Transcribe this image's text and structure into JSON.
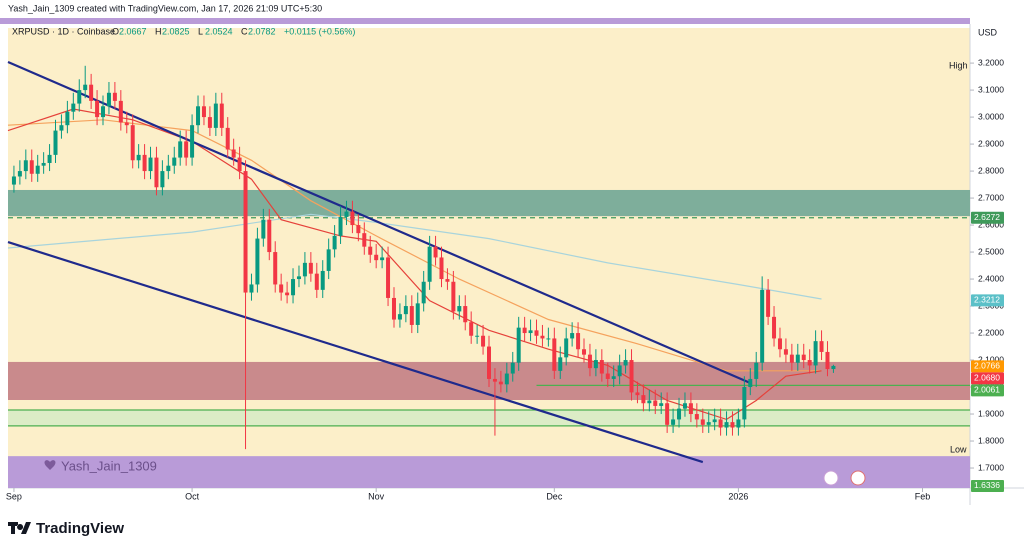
{
  "header_note": "Yash_Jain_1309 created with TradingView.com, Jan 17, 2026 21:09 UTC+5:30",
  "brand": "TradingView",
  "chart_data": {
    "type": "candlestick",
    "symbol": "XRPUSD · 1D · Coinbase",
    "legend_ohlc": [
      {
        "key": "O",
        "value": 2.0667
      },
      {
        "key": "H",
        "value": 2.0825
      },
      {
        "key": "L",
        "value": 2.0524
      },
      {
        "key": "C",
        "value": 2.0782
      }
    ],
    "change": "+0.0115 (+0.56%)",
    "currency": "USD",
    "high_label": "High",
    "low_label": "Low",
    "watermark": "Yash_Jain_1309",
    "up_color": "#089981",
    "down_color": "#f23645",
    "xlim": [
      -1,
      161
    ],
    "xticks": [
      {
        "value": 0,
        "label": "Sep"
      },
      {
        "value": 30,
        "label": "Oct"
      },
      {
        "value": 61,
        "label": "Nov"
      },
      {
        "value": 91,
        "label": "Dec"
      },
      {
        "value": 122,
        "label": "2026"
      },
      {
        "value": 153,
        "label": "Feb"
      }
    ],
    "ylim": [
      1.626,
      3.33
    ],
    "yticks": [
      {
        "value": 1.7,
        "label": "1.7000"
      },
      {
        "value": 1.8,
        "label": "1.8000"
      },
      {
        "value": 1.9,
        "label": "1.9000"
      },
      {
        "value": 2.0,
        "label": "2.0000"
      },
      {
        "value": 2.1,
        "label": "2.1000"
      },
      {
        "value": 2.2,
        "label": "2.2000"
      },
      {
        "value": 2.3,
        "label": "2.3000"
      },
      {
        "value": 2.4,
        "label": "2.4000"
      },
      {
        "value": 2.5,
        "label": "2.5000"
      },
      {
        "value": 2.6,
        "label": "2.6000"
      },
      {
        "value": 2.7,
        "label": "2.7000"
      },
      {
        "value": 2.8,
        "label": "2.8000"
      },
      {
        "value": 2.9,
        "label": "2.9000"
      },
      {
        "value": 3.0,
        "label": "3.0000"
      },
      {
        "value": 3.1,
        "label": "3.1000"
      },
      {
        "value": 3.2,
        "label": "3.2000"
      }
    ],
    "zones": [
      {
        "from": 2.633,
        "to": 2.73,
        "color": "#7eae9b"
      },
      {
        "from": 1.952,
        "to": 2.093,
        "color": "#c98a8c"
      },
      {
        "from": 1.856,
        "to": 1.915,
        "color": "#dcecc6"
      },
      {
        "from": 1.626,
        "to": 1.744,
        "color": "#b99bd8"
      }
    ],
    "levels": [
      {
        "value": 2.6272,
        "color": "#3f9a5a",
        "dashed": true,
        "from": -1
      },
      {
        "value": 2.0061,
        "color": "#4caf50",
        "dashed": false,
        "from": 88
      },
      {
        "value": 1.915,
        "color": "#4caf50",
        "dashed": false,
        "from": -1
      },
      {
        "value": 1.856,
        "color": "#4caf50",
        "dashed": false,
        "from": -1
      }
    ],
    "price_labels": [
      {
        "value": 2.6272,
        "color": "#3f9a5a"
      },
      {
        "value": 2.3212,
        "color": "#5bc0c8"
      },
      {
        "value": 2.0766,
        "color": "#ff9800"
      },
      {
        "value": 2.068,
        "label": "2.0680",
        "color": "#f23645"
      },
      {
        "value": 2.0061,
        "color": "#4caf50"
      },
      {
        "value": 1.6336,
        "color": "#4caf50"
      }
    ],
    "lines": [
      {
        "color": "#a8d4dc",
        "x": [
          -1,
          30,
          50,
          61,
          80,
          100,
          122,
          136
        ],
        "values": [
          2.515,
          2.574,
          2.64,
          2.61,
          2.55,
          2.46,
          2.38,
          2.326
        ]
      },
      {
        "color": "#f5a25d",
        "x": [
          -1,
          15,
          30,
          40,
          50,
          61,
          75,
          90,
          105,
          120,
          136
        ],
        "values": [
          2.97,
          2.99,
          2.95,
          2.84,
          2.69,
          2.56,
          2.4,
          2.25,
          2.16,
          2.06,
          2.06
        ]
      },
      {
        "color": "#e5413a",
        "x": [
          -1,
          10,
          20,
          30,
          40,
          45,
          55,
          61,
          70,
          80,
          90,
          100,
          110,
          120,
          125,
          130,
          136
        ],
        "values": [
          2.95,
          3.03,
          2.99,
          2.91,
          2.77,
          2.62,
          2.56,
          2.54,
          2.32,
          2.21,
          2.14,
          2.08,
          1.95,
          1.88,
          1.95,
          2.04,
          2.06
        ]
      },
      {
        "color": "#1f2a8c",
        "x": [
          -1,
          124
        ],
        "values": [
          3.204,
          2.015
        ]
      },
      {
        "color": "#1f2a8c",
        "x": [
          -1,
          116
        ],
        "values": [
          2.537,
          1.722
        ]
      }
    ],
    "candles": [
      [
        2.75,
        2.82,
        2.72,
        2.78
      ],
      [
        2.78,
        2.84,
        2.75,
        2.8
      ],
      [
        2.8,
        2.88,
        2.77,
        2.84
      ],
      [
        2.84,
        2.88,
        2.76,
        2.79
      ],
      [
        2.79,
        2.86,
        2.76,
        2.82
      ],
      [
        2.82,
        2.87,
        2.79,
        2.83
      ],
      [
        2.83,
        2.9,
        2.8,
        2.86
      ],
      [
        2.86,
        2.99,
        2.83,
        2.95
      ],
      [
        2.95,
        3.01,
        2.92,
        2.97
      ],
      [
        2.97,
        3.06,
        2.94,
        3.02
      ],
      [
        3.02,
        3.09,
        2.99,
        3.05
      ],
      [
        3.05,
        3.14,
        3.02,
        3.1
      ],
      [
        3.1,
        3.19,
        3.07,
        3.12
      ],
      [
        3.12,
        3.16,
        3.03,
        3.06
      ],
      [
        3.06,
        3.1,
        2.97,
        3.0
      ],
      [
        3.0,
        3.08,
        2.97,
        3.04
      ],
      [
        3.04,
        3.13,
        3.01,
        3.09
      ],
      [
        3.09,
        3.13,
        3.03,
        3.06
      ],
      [
        3.06,
        3.1,
        2.95,
        2.98
      ],
      [
        2.98,
        3.02,
        2.94,
        2.97
      ],
      [
        2.97,
        3.01,
        2.81,
        2.84
      ],
      [
        2.84,
        2.9,
        2.81,
        2.86
      ],
      [
        2.86,
        2.9,
        2.77,
        2.8
      ],
      [
        2.8,
        2.89,
        2.77,
        2.85
      ],
      [
        2.85,
        2.89,
        2.71,
        2.74
      ],
      [
        2.74,
        2.84,
        2.71,
        2.8
      ],
      [
        2.8,
        2.86,
        2.77,
        2.82
      ],
      [
        2.82,
        2.89,
        2.79,
        2.85
      ],
      [
        2.85,
        2.95,
        2.82,
        2.91
      ],
      [
        2.91,
        2.95,
        2.82,
        2.85
      ],
      [
        2.85,
        3.01,
        2.82,
        2.97
      ],
      [
        2.97,
        3.08,
        2.94,
        3.04
      ],
      [
        3.04,
        3.08,
        2.97,
        3.0
      ],
      [
        3.0,
        3.04,
        2.93,
        2.96
      ],
      [
        2.96,
        3.09,
        2.93,
        3.05
      ],
      [
        3.05,
        3.09,
        2.93,
        2.96
      ],
      [
        2.96,
        3.0,
        2.85,
        2.88
      ],
      [
        2.88,
        2.92,
        2.82,
        2.85
      ],
      [
        2.85,
        2.89,
        2.77,
        2.8
      ],
      [
        2.8,
        2.84,
        1.77,
        2.35
      ],
      [
        2.35,
        2.42,
        2.32,
        2.38
      ],
      [
        2.38,
        2.59,
        2.35,
        2.55
      ],
      [
        2.55,
        2.66,
        2.52,
        2.62
      ],
      [
        2.62,
        2.66,
        2.47,
        2.5
      ],
      [
        2.5,
        2.54,
        2.35,
        2.38
      ],
      [
        2.38,
        2.42,
        2.32,
        2.35
      ],
      [
        2.35,
        2.39,
        2.31,
        2.34
      ],
      [
        2.34,
        2.44,
        2.31,
        2.4
      ],
      [
        2.4,
        2.45,
        2.37,
        2.41
      ],
      [
        2.41,
        2.5,
        2.38,
        2.46
      ],
      [
        2.46,
        2.5,
        2.39,
        2.42
      ],
      [
        2.42,
        2.46,
        2.33,
        2.36
      ],
      [
        2.36,
        2.47,
        2.33,
        2.43
      ],
      [
        2.43,
        2.55,
        2.4,
        2.51
      ],
      [
        2.51,
        2.6,
        2.48,
        2.56
      ],
      [
        2.56,
        2.67,
        2.53,
        2.63
      ],
      [
        2.63,
        2.69,
        2.6,
        2.65
      ],
      [
        2.65,
        2.69,
        2.57,
        2.6
      ],
      [
        2.6,
        2.64,
        2.54,
        2.57
      ],
      [
        2.57,
        2.61,
        2.49,
        2.52
      ],
      [
        2.52,
        2.56,
        2.46,
        2.49
      ],
      [
        2.49,
        2.53,
        2.44,
        2.47
      ],
      [
        2.47,
        2.52,
        2.44,
        2.48
      ],
      [
        2.48,
        2.52,
        2.3,
        2.33
      ],
      [
        2.33,
        2.37,
        2.22,
        2.25
      ],
      [
        2.25,
        2.31,
        2.22,
        2.27
      ],
      [
        2.27,
        2.34,
        2.24,
        2.3
      ],
      [
        2.3,
        2.34,
        2.2,
        2.23
      ],
      [
        2.23,
        2.35,
        2.2,
        2.31
      ],
      [
        2.31,
        2.43,
        2.28,
        2.39
      ],
      [
        2.39,
        2.56,
        2.36,
        2.52
      ],
      [
        2.52,
        2.56,
        2.45,
        2.48
      ],
      [
        2.48,
        2.52,
        2.37,
        2.4
      ],
      [
        2.4,
        2.44,
        2.36,
        2.39
      ],
      [
        2.39,
        2.43,
        2.25,
        2.28
      ],
      [
        2.28,
        2.34,
        2.25,
        2.3
      ],
      [
        2.3,
        2.34,
        2.21,
        2.24
      ],
      [
        2.24,
        2.28,
        2.16,
        2.19
      ],
      [
        2.19,
        2.23,
        2.16,
        2.19
      ],
      [
        2.19,
        2.23,
        2.12,
        2.15
      ],
      [
        2.15,
        2.19,
        2.0,
        2.03
      ],
      [
        2.03,
        2.07,
        1.82,
        2.02
      ],
      [
        2.02,
        2.06,
        1.98,
        2.01
      ],
      [
        2.01,
        2.09,
        1.98,
        2.05
      ],
      [
        2.05,
        2.13,
        2.02,
        2.09
      ],
      [
        2.09,
        2.26,
        2.06,
        2.22
      ],
      [
        2.22,
        2.26,
        2.17,
        2.2
      ],
      [
        2.2,
        2.25,
        2.17,
        2.21
      ],
      [
        2.21,
        2.25,
        2.16,
        2.19
      ],
      [
        2.19,
        2.23,
        2.15,
        2.18
      ],
      [
        2.18,
        2.22,
        2.15,
        2.18
      ],
      [
        2.18,
        2.22,
        2.03,
        2.06
      ],
      [
        2.06,
        2.15,
        2.03,
        2.11
      ],
      [
        2.11,
        2.22,
        2.08,
        2.18
      ],
      [
        2.18,
        2.24,
        2.15,
        2.2
      ],
      [
        2.2,
        2.24,
        2.11,
        2.14
      ],
      [
        2.14,
        2.18,
        2.09,
        2.12
      ],
      [
        2.12,
        2.16,
        2.04,
        2.07
      ],
      [
        2.07,
        2.14,
        2.04,
        2.1
      ],
      [
        2.1,
        2.14,
        2.02,
        2.05
      ],
      [
        2.05,
        2.09,
        2.0,
        2.03
      ],
      [
        2.03,
        2.08,
        2.0,
        2.04
      ],
      [
        2.04,
        2.12,
        2.01,
        2.08
      ],
      [
        2.08,
        2.14,
        2.05,
        2.1
      ],
      [
        2.1,
        2.14,
        1.95,
        1.98
      ],
      [
        1.98,
        2.02,
        1.94,
        1.97
      ],
      [
        1.97,
        2.01,
        1.91,
        1.94
      ],
      [
        1.94,
        1.99,
        1.91,
        1.95
      ],
      [
        1.95,
        1.99,
        1.9,
        1.93
      ],
      [
        1.93,
        1.98,
        1.9,
        1.94
      ],
      [
        1.94,
        1.98,
        1.83,
        1.86
      ],
      [
        1.86,
        1.92,
        1.83,
        1.88
      ],
      [
        1.88,
        1.96,
        1.85,
        1.92
      ],
      [
        1.92,
        1.98,
        1.89,
        1.94
      ],
      [
        1.94,
        1.98,
        1.87,
        1.9
      ],
      [
        1.9,
        1.94,
        1.85,
        1.88
      ],
      [
        1.88,
        1.92,
        1.83,
        1.86
      ],
      [
        1.86,
        1.91,
        1.83,
        1.87
      ],
      [
        1.87,
        1.92,
        1.84,
        1.88
      ],
      [
        1.88,
        1.92,
        1.82,
        1.85
      ],
      [
        1.85,
        1.91,
        1.82,
        1.87
      ],
      [
        1.87,
        1.91,
        1.82,
        1.85
      ],
      [
        1.85,
        1.92,
        1.82,
        1.88
      ],
      [
        1.88,
        2.04,
        1.85,
        2.0
      ],
      [
        2.0,
        2.07,
        1.97,
        2.03
      ],
      [
        2.03,
        2.13,
        2.0,
        2.09
      ],
      [
        2.09,
        2.41,
        2.06,
        2.36
      ],
      [
        2.36,
        2.4,
        2.23,
        2.26
      ],
      [
        2.26,
        2.3,
        2.15,
        2.18
      ],
      [
        2.18,
        2.22,
        2.11,
        2.14
      ],
      [
        2.14,
        2.18,
        2.09,
        2.12
      ],
      [
        2.12,
        2.16,
        2.06,
        2.09
      ],
      [
        2.09,
        2.16,
        2.06,
        2.12
      ],
      [
        2.12,
        2.16,
        2.07,
        2.1
      ],
      [
        2.1,
        2.14,
        2.05,
        2.08
      ],
      [
        2.08,
        2.21,
        2.05,
        2.17
      ],
      [
        2.17,
        2.21,
        2.1,
        2.13
      ],
      [
        2.13,
        2.17,
        2.04,
        2.0667
      ],
      [
        2.0667,
        2.0825,
        2.0524,
        2.0782
      ]
    ]
  }
}
